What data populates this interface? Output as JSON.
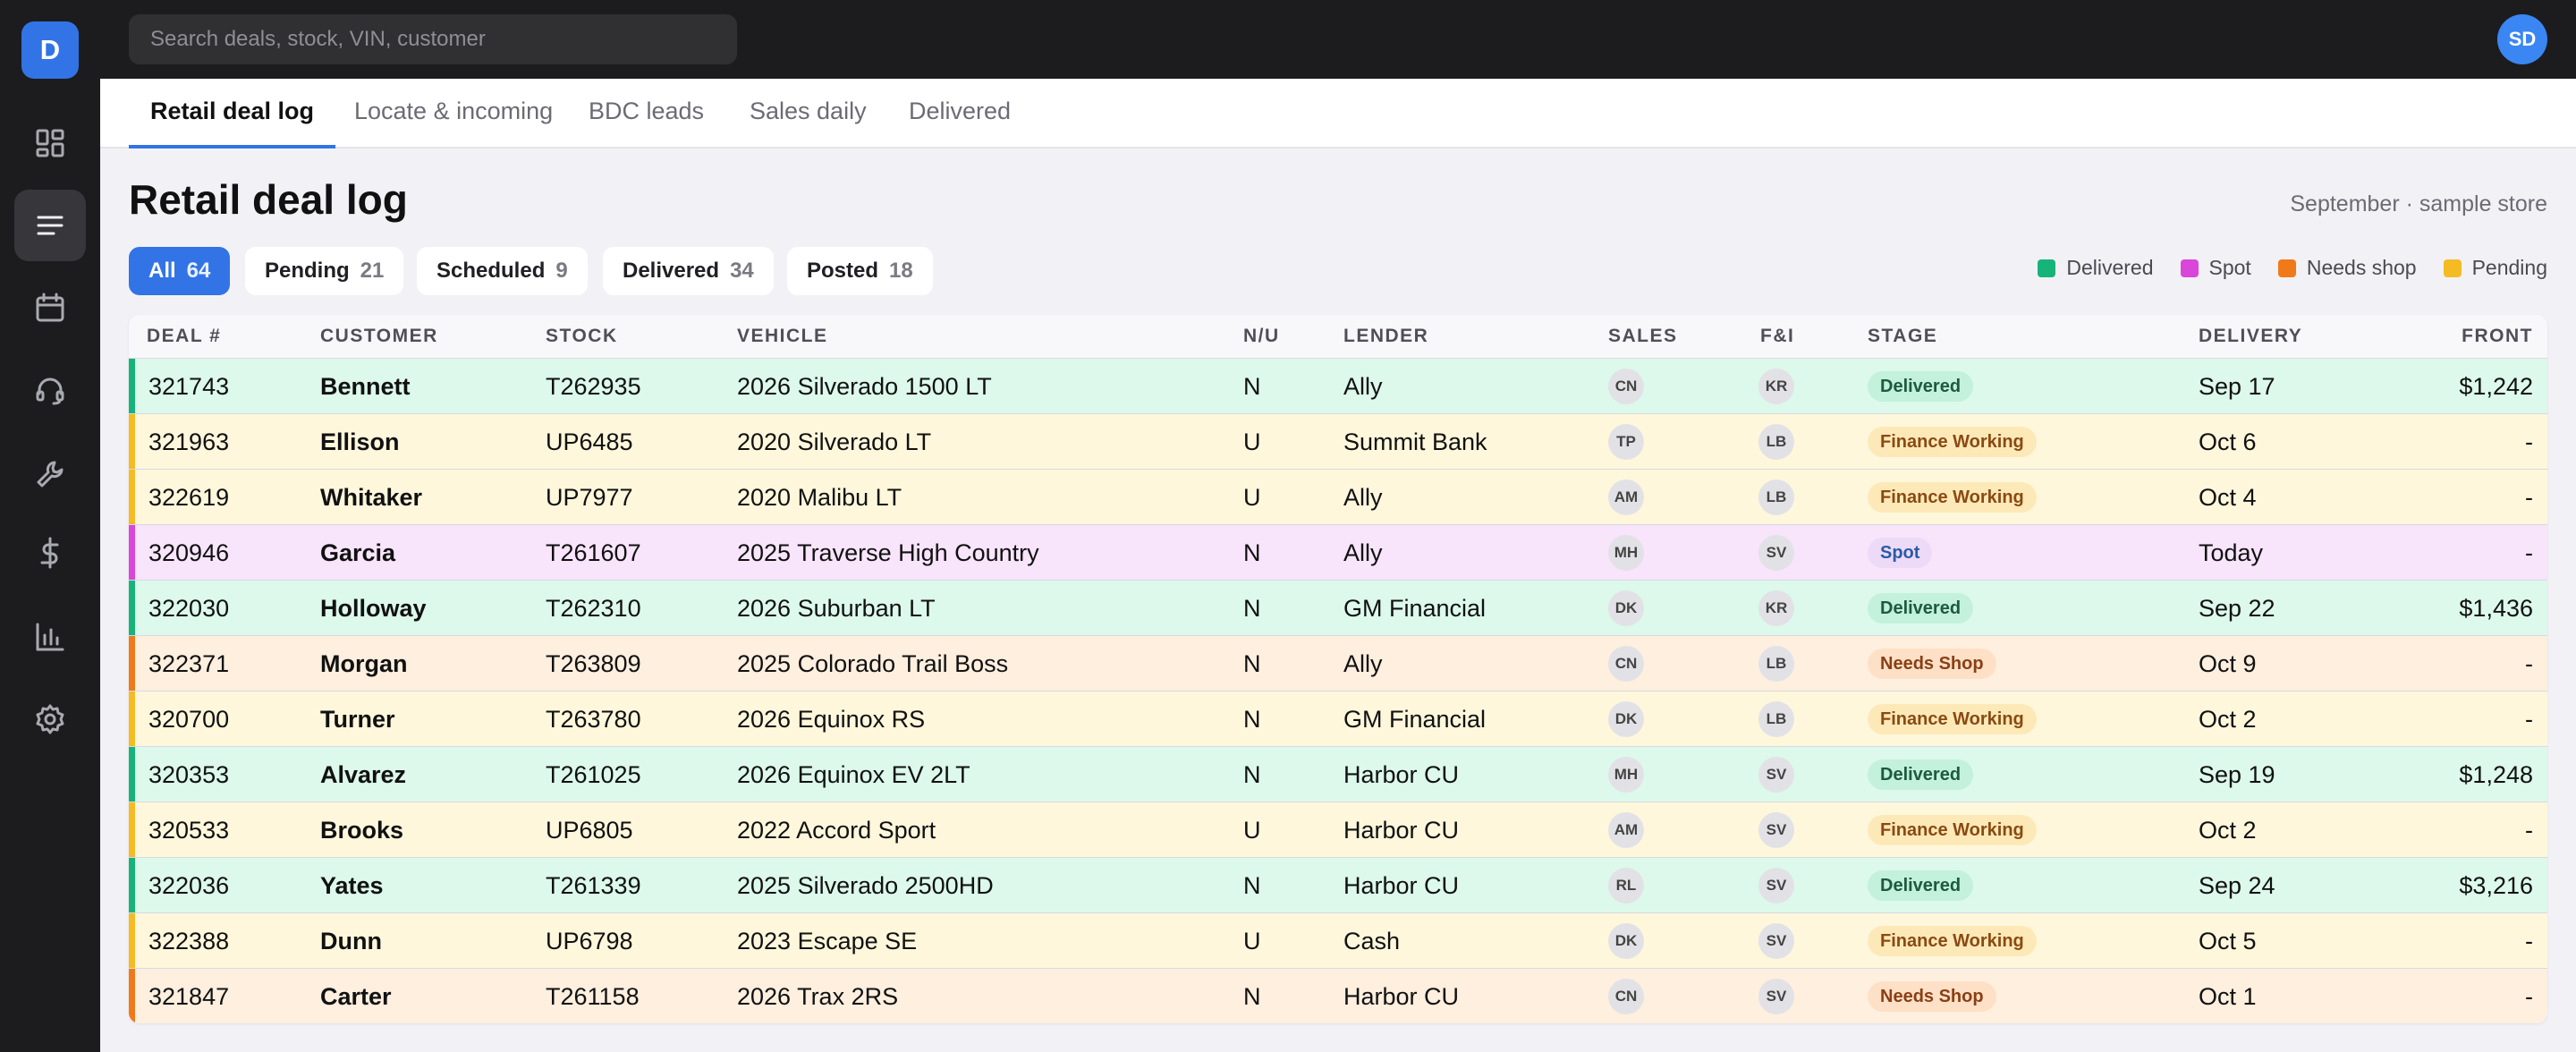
{
  "app": {
    "logo_letter": "D",
    "user_initials": "SD"
  },
  "search": {
    "placeholder": "Search deals, stock, VIN, customer"
  },
  "sidebar": {
    "items": [
      {
        "icon": "dashboard-icon",
        "active": false
      },
      {
        "icon": "list-icon",
        "active": true
      },
      {
        "icon": "calendar-icon",
        "active": false
      },
      {
        "icon": "headset-icon",
        "active": false
      },
      {
        "icon": "wrench-icon",
        "active": false
      },
      {
        "icon": "dollar-icon",
        "active": false
      },
      {
        "icon": "bar-chart-icon",
        "active": false
      },
      {
        "icon": "gear-icon",
        "active": false
      }
    ]
  },
  "tabs": [
    {
      "label": "Retail deal log",
      "active": true
    },
    {
      "label": "Locate & incoming",
      "active": false
    },
    {
      "label": "BDC leads",
      "active": false
    },
    {
      "label": "Sales daily",
      "active": false
    },
    {
      "label": "Delivered",
      "active": false
    }
  ],
  "page": {
    "title": "Retail deal log",
    "store": "September · sample store"
  },
  "filters": [
    {
      "label": "All",
      "count": "64",
      "active": true
    },
    {
      "label": "Pending",
      "count": "21",
      "active": false
    },
    {
      "label": "Scheduled",
      "count": "9",
      "active": false
    },
    {
      "label": "Delivered",
      "count": "34",
      "active": false
    },
    {
      "label": "Posted",
      "count": "18",
      "active": false
    }
  ],
  "legend": [
    {
      "label": "Delivered",
      "color": "#17b47a"
    },
    {
      "label": "Spot",
      "color": "#d946d9"
    },
    {
      "label": "Needs shop",
      "color": "#f07a1a"
    },
    {
      "label": "Pending",
      "color": "#f5bb24"
    }
  ],
  "table": {
    "columns": {
      "deal": "DEAL #",
      "customer": "CUSTOMER",
      "stock": "STOCK",
      "vehicle": "VEHICLE",
      "nu": "N/U",
      "lender": "LENDER",
      "sales": "SALES",
      "fi": "F&I",
      "stage": "STAGE",
      "delivery": "DELIVERY",
      "front": "FRONT"
    },
    "rows": [
      {
        "status": "delivered",
        "deal": "321743",
        "customer": "Bennett",
        "stock": "T262935",
        "vehicle": "2026 Silverado 1500 LT",
        "nu": "N",
        "lender": "Ally",
        "sales": "CN",
        "fi": "KR",
        "stage": "Delivered",
        "delivery": "Sep 17",
        "front": "$1,242"
      },
      {
        "status": "pending",
        "deal": "321963",
        "customer": "Ellison",
        "stock": "UP6485",
        "vehicle": "2020 Silverado LT",
        "nu": "U",
        "lender": "Summit Bank",
        "sales": "TP",
        "fi": "LB",
        "stage": "Finance Working",
        "delivery": "Oct 6",
        "front": "-"
      },
      {
        "status": "pending",
        "deal": "322619",
        "customer": "Whitaker",
        "stock": "UP7977",
        "vehicle": "2020 Malibu LT",
        "nu": "U",
        "lender": "Ally",
        "sales": "AM",
        "fi": "LB",
        "stage": "Finance Working",
        "delivery": "Oct 4",
        "front": "-"
      },
      {
        "status": "spot",
        "deal": "320946",
        "customer": "Garcia",
        "stock": "T261607",
        "vehicle": "2025 Traverse High Country",
        "nu": "N",
        "lender": "Ally",
        "sales": "MH",
        "fi": "SV",
        "stage": "Spot",
        "delivery": "Today",
        "front": "-"
      },
      {
        "status": "delivered",
        "deal": "322030",
        "customer": "Holloway",
        "stock": "T262310",
        "vehicle": "2026 Suburban LT",
        "nu": "N",
        "lender": "GM Financial",
        "sales": "DK",
        "fi": "KR",
        "stage": "Delivered",
        "delivery": "Sep 22",
        "front": "$1,436"
      },
      {
        "status": "needs-shop",
        "deal": "322371",
        "customer": "Morgan",
        "stock": "T263809",
        "vehicle": "2025 Colorado Trail Boss",
        "nu": "N",
        "lender": "Ally",
        "sales": "CN",
        "fi": "LB",
        "stage": "Needs Shop",
        "delivery": "Oct 9",
        "front": "-"
      },
      {
        "status": "pending",
        "deal": "320700",
        "customer": "Turner",
        "stock": "T263780",
        "vehicle": "2026 Equinox RS",
        "nu": "N",
        "lender": "GM Financial",
        "sales": "DK",
        "fi": "LB",
        "stage": "Finance Working",
        "delivery": "Oct 2",
        "front": "-"
      },
      {
        "status": "delivered",
        "deal": "320353",
        "customer": "Alvarez",
        "stock": "T261025",
        "vehicle": "2026 Equinox EV 2LT",
        "nu": "N",
        "lender": "Harbor CU",
        "sales": "MH",
        "fi": "SV",
        "stage": "Delivered",
        "delivery": "Sep 19",
        "front": "$1,248"
      },
      {
        "status": "pending",
        "deal": "320533",
        "customer": "Brooks",
        "stock": "UP6805",
        "vehicle": "2022 Accord Sport",
        "nu": "U",
        "lender": "Harbor CU",
        "sales": "AM",
        "fi": "SV",
        "stage": "Finance Working",
        "delivery": "Oct 2",
        "front": "-"
      },
      {
        "status": "delivered",
        "deal": "322036",
        "customer": "Yates",
        "stock": "T261339",
        "vehicle": "2025 Silverado 2500HD",
        "nu": "N",
        "lender": "Harbor CU",
        "sales": "RL",
        "fi": "SV",
        "stage": "Delivered",
        "delivery": "Sep 24",
        "front": "$3,216"
      },
      {
        "status": "pending",
        "deal": "322388",
        "customer": "Dunn",
        "stock": "UP6798",
        "vehicle": "2023 Escape SE",
        "nu": "U",
        "lender": "Cash",
        "sales": "DK",
        "fi": "SV",
        "stage": "Finance Working",
        "delivery": "Oct 5",
        "front": "-"
      },
      {
        "status": "needs-shop",
        "deal": "321847",
        "customer": "Carter",
        "stock": "T261158",
        "vehicle": "2026 Trax 2RS",
        "nu": "N",
        "lender": "Harbor CU",
        "sales": "CN",
        "fi": "SV",
        "stage": "Needs Shop",
        "delivery": "Oct 1",
        "front": "-"
      }
    ]
  }
}
